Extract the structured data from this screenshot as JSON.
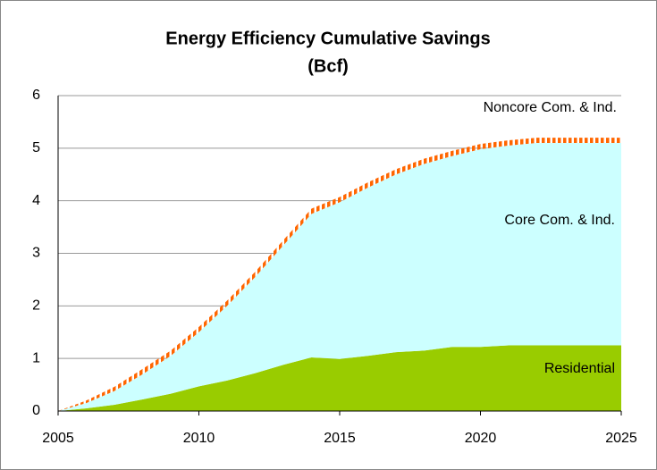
{
  "chart_data": {
    "type": "stacked_area",
    "title": "Energy Efficiency Cumulative Savings",
    "subtitle": "(Bcf)",
    "x": [
      2005,
      2006,
      2007,
      2008,
      2009,
      2010,
      2011,
      2012,
      2013,
      2014,
      2015,
      2016,
      2017,
      2018,
      2019,
      2020,
      2021,
      2022,
      2023,
      2024,
      2025
    ],
    "xlim": [
      2005,
      2025
    ],
    "xticks": [
      2005,
      2010,
      2015,
      2020,
      2025
    ],
    "ylim": [
      0,
      6
    ],
    "yticks": [
      0,
      1,
      2,
      3,
      4,
      5,
      6
    ],
    "grid": true,
    "series": [
      {
        "name": "Residential",
        "color": "#99cc00",
        "values": [
          0,
          0.05,
          0.12,
          0.22,
          0.33,
          0.47,
          0.58,
          0.72,
          0.88,
          1.02,
          0.99,
          1.05,
          1.12,
          1.15,
          1.22,
          1.22,
          1.25,
          1.25,
          1.25,
          1.25,
          1.25
        ]
      },
      {
        "name": "Core Com. & Ind.",
        "color": "#ccffff",
        "values": [
          0,
          0.1,
          0.26,
          0.48,
          0.72,
          1.03,
          1.42,
          1.83,
          2.27,
          2.73,
          2.98,
          3.2,
          3.38,
          3.55,
          3.63,
          3.76,
          3.8,
          3.85,
          3.85,
          3.85,
          3.85
        ]
      },
      {
        "name": "Noncore Com. & Ind.",
        "color": "#ff6600",
        "values": [
          0,
          0.05,
          0.08,
          0.1,
          0.1,
          0.1,
          0.1,
          0.1,
          0.1,
          0.1,
          0.1,
          0.1,
          0.1,
          0.1,
          0.1,
          0.1,
          0.1,
          0.1,
          0.1,
          0.1,
          0.1
        ]
      }
    ]
  }
}
